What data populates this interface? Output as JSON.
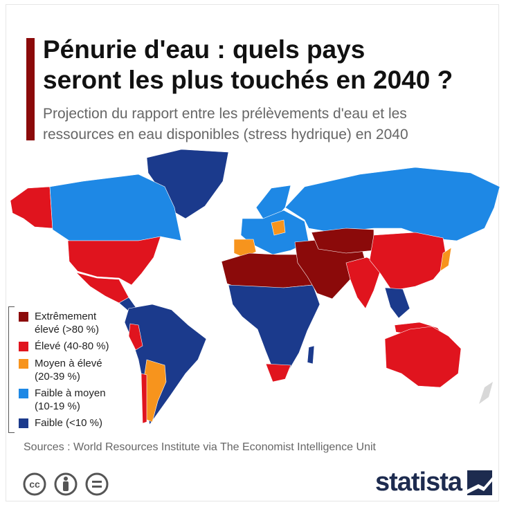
{
  "header": {
    "title_lines": [
      "Pénurie d'eau : quels pays",
      "seront les plus touchés en 2040 ?"
    ],
    "subtitle_lines": [
      "Projection du rapport entre les prélèvements d'eau et les",
      "ressources en eau disponibles (stress hydrique) en 2040"
    ]
  },
  "legend": {
    "items": [
      {
        "label": "Extrêmement élevé (>80 %)",
        "color": "#8b0a0a"
      },
      {
        "label": "Élevé (40-80 %)",
        "color": "#e0141e"
      },
      {
        "label": "Moyen à élevé (20-39 %)",
        "color": "#f7941d"
      },
      {
        "label": "Faible à moyen (10-19 %)",
        "color": "#1e88e5"
      },
      {
        "label": "Faible (<10 %)",
        "color": "#1b3a8c"
      }
    ]
  },
  "footer": {
    "sources": "Sources : World Resources Institute via The Economist Intelligence Unit",
    "license": "cc",
    "brand": "statista"
  }
}
